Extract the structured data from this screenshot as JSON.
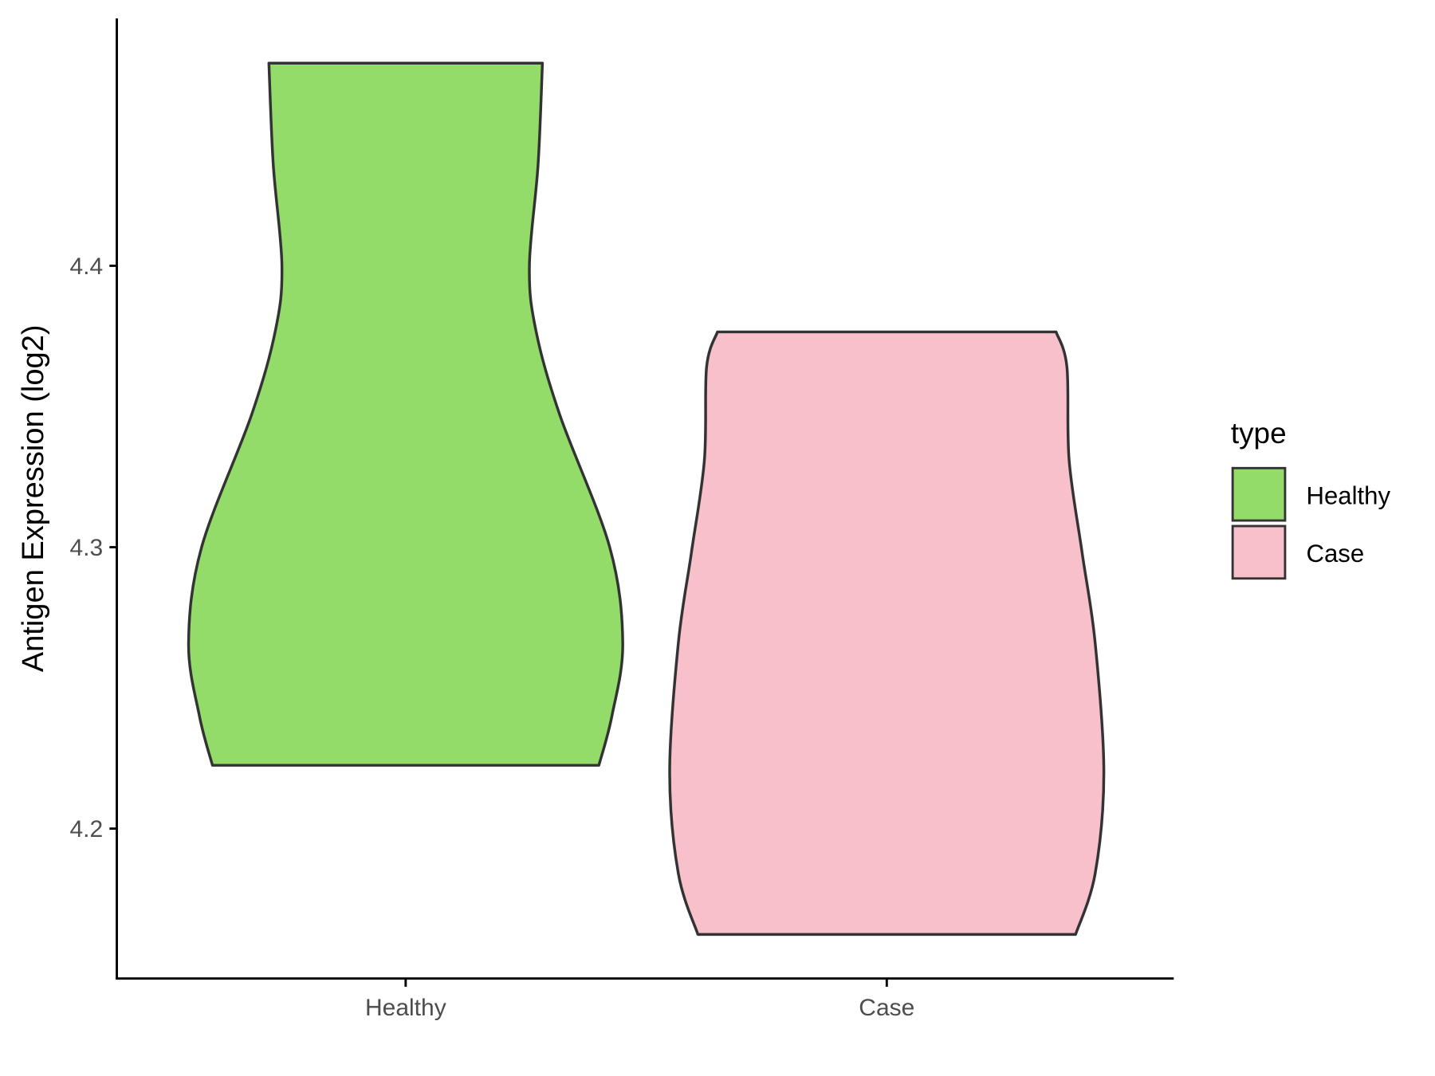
{
  "chart_data": {
    "type": "violin",
    "title": "",
    "xlabel": "",
    "ylabel": "Antigen Expression (log2)",
    "categories": [
      "Healthy",
      "Case"
    ],
    "ylim": [
      4.145,
      4.485
    ],
    "yticks": [
      4.2,
      4.3,
      4.4
    ],
    "ytick_labels": [
      "4.2",
      "4.3",
      "4.4"
    ],
    "grid": false,
    "legend": {
      "title": "type",
      "position": "right",
      "entries": [
        "Healthy",
        "Case"
      ]
    },
    "series": [
      {
        "name": "Healthy",
        "color": "#93DC6A",
        "min": 4.2225,
        "max": 4.472,
        "density_profile": [
          [
            4.472,
            0.63
          ],
          [
            4.436,
            0.61
          ],
          [
            4.4,
            0.57
          ],
          [
            4.377,
            0.6
          ],
          [
            4.347,
            0.71
          ],
          [
            4.3,
            0.94
          ],
          [
            4.266,
            1.0
          ],
          [
            4.24,
            0.95
          ],
          [
            4.2225,
            0.89
          ]
        ]
      },
      {
        "name": "Case",
        "color": "#F7C0CB",
        "min": 4.1624,
        "max": 4.3765,
        "density_profile": [
          [
            4.3765,
            0.78
          ],
          [
            4.364,
            0.83
          ],
          [
            4.331,
            0.84
          ],
          [
            4.298,
            0.9
          ],
          [
            4.266,
            0.96
          ],
          [
            4.22,
            1.0
          ],
          [
            4.184,
            0.96
          ],
          [
            4.1624,
            0.87
          ]
        ]
      }
    ]
  }
}
